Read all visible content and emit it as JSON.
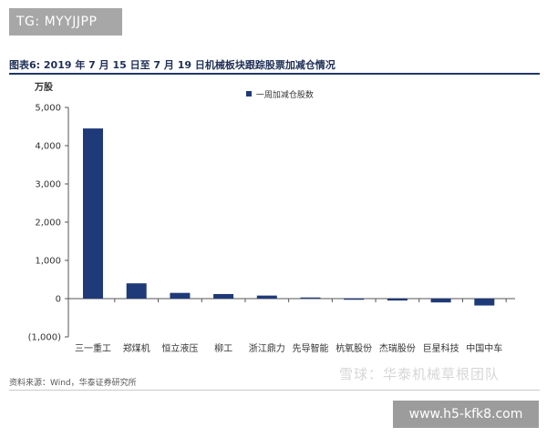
{
  "overlay": {
    "tg_label": "TG: MYYJJPP",
    "url_label": "www.h5-kfk8.com",
    "watermark_text": "雪球：华泰机械草根团队"
  },
  "figure": {
    "title": "图表6:  2019 年 7 月 15 日至 7 月 19 日机械板块跟踪股票加减仓情况",
    "y_unit": "万股",
    "source": "资料来源：Wind，华泰证券研究所"
  },
  "colors": {
    "bar": "#1f3a78",
    "axis": "#555555",
    "title": "#1f2f57"
  },
  "chart_data": {
    "type": "bar",
    "title": "图表6:  2019 年 7 月 15 日至 7 月 19 日机械板块跟踪股票加减仓情况",
    "xlabel": "",
    "ylabel": "万股",
    "ylim": [
      -1000,
      5000
    ],
    "yticks": [
      5000,
      4000,
      3000,
      2000,
      1000,
      0,
      -1000
    ],
    "ytick_labels": [
      "5,000",
      "4,000",
      "3,000",
      "2,000",
      "1,000",
      "0",
      "(1,000)"
    ],
    "grid": false,
    "legend_position": "top-center",
    "categories": [
      "三一重工",
      "郑煤机",
      "恒立液压",
      "柳工",
      "浙江鼎力",
      "先导智能",
      "杭氧股份",
      "杰瑞股份",
      "巨星科技",
      "中国中车"
    ],
    "series": [
      {
        "name": "一周加减仓股数",
        "values": [
          4450,
          400,
          150,
          120,
          80,
          30,
          -30,
          -50,
          -100,
          -180
        ]
      }
    ]
  }
}
